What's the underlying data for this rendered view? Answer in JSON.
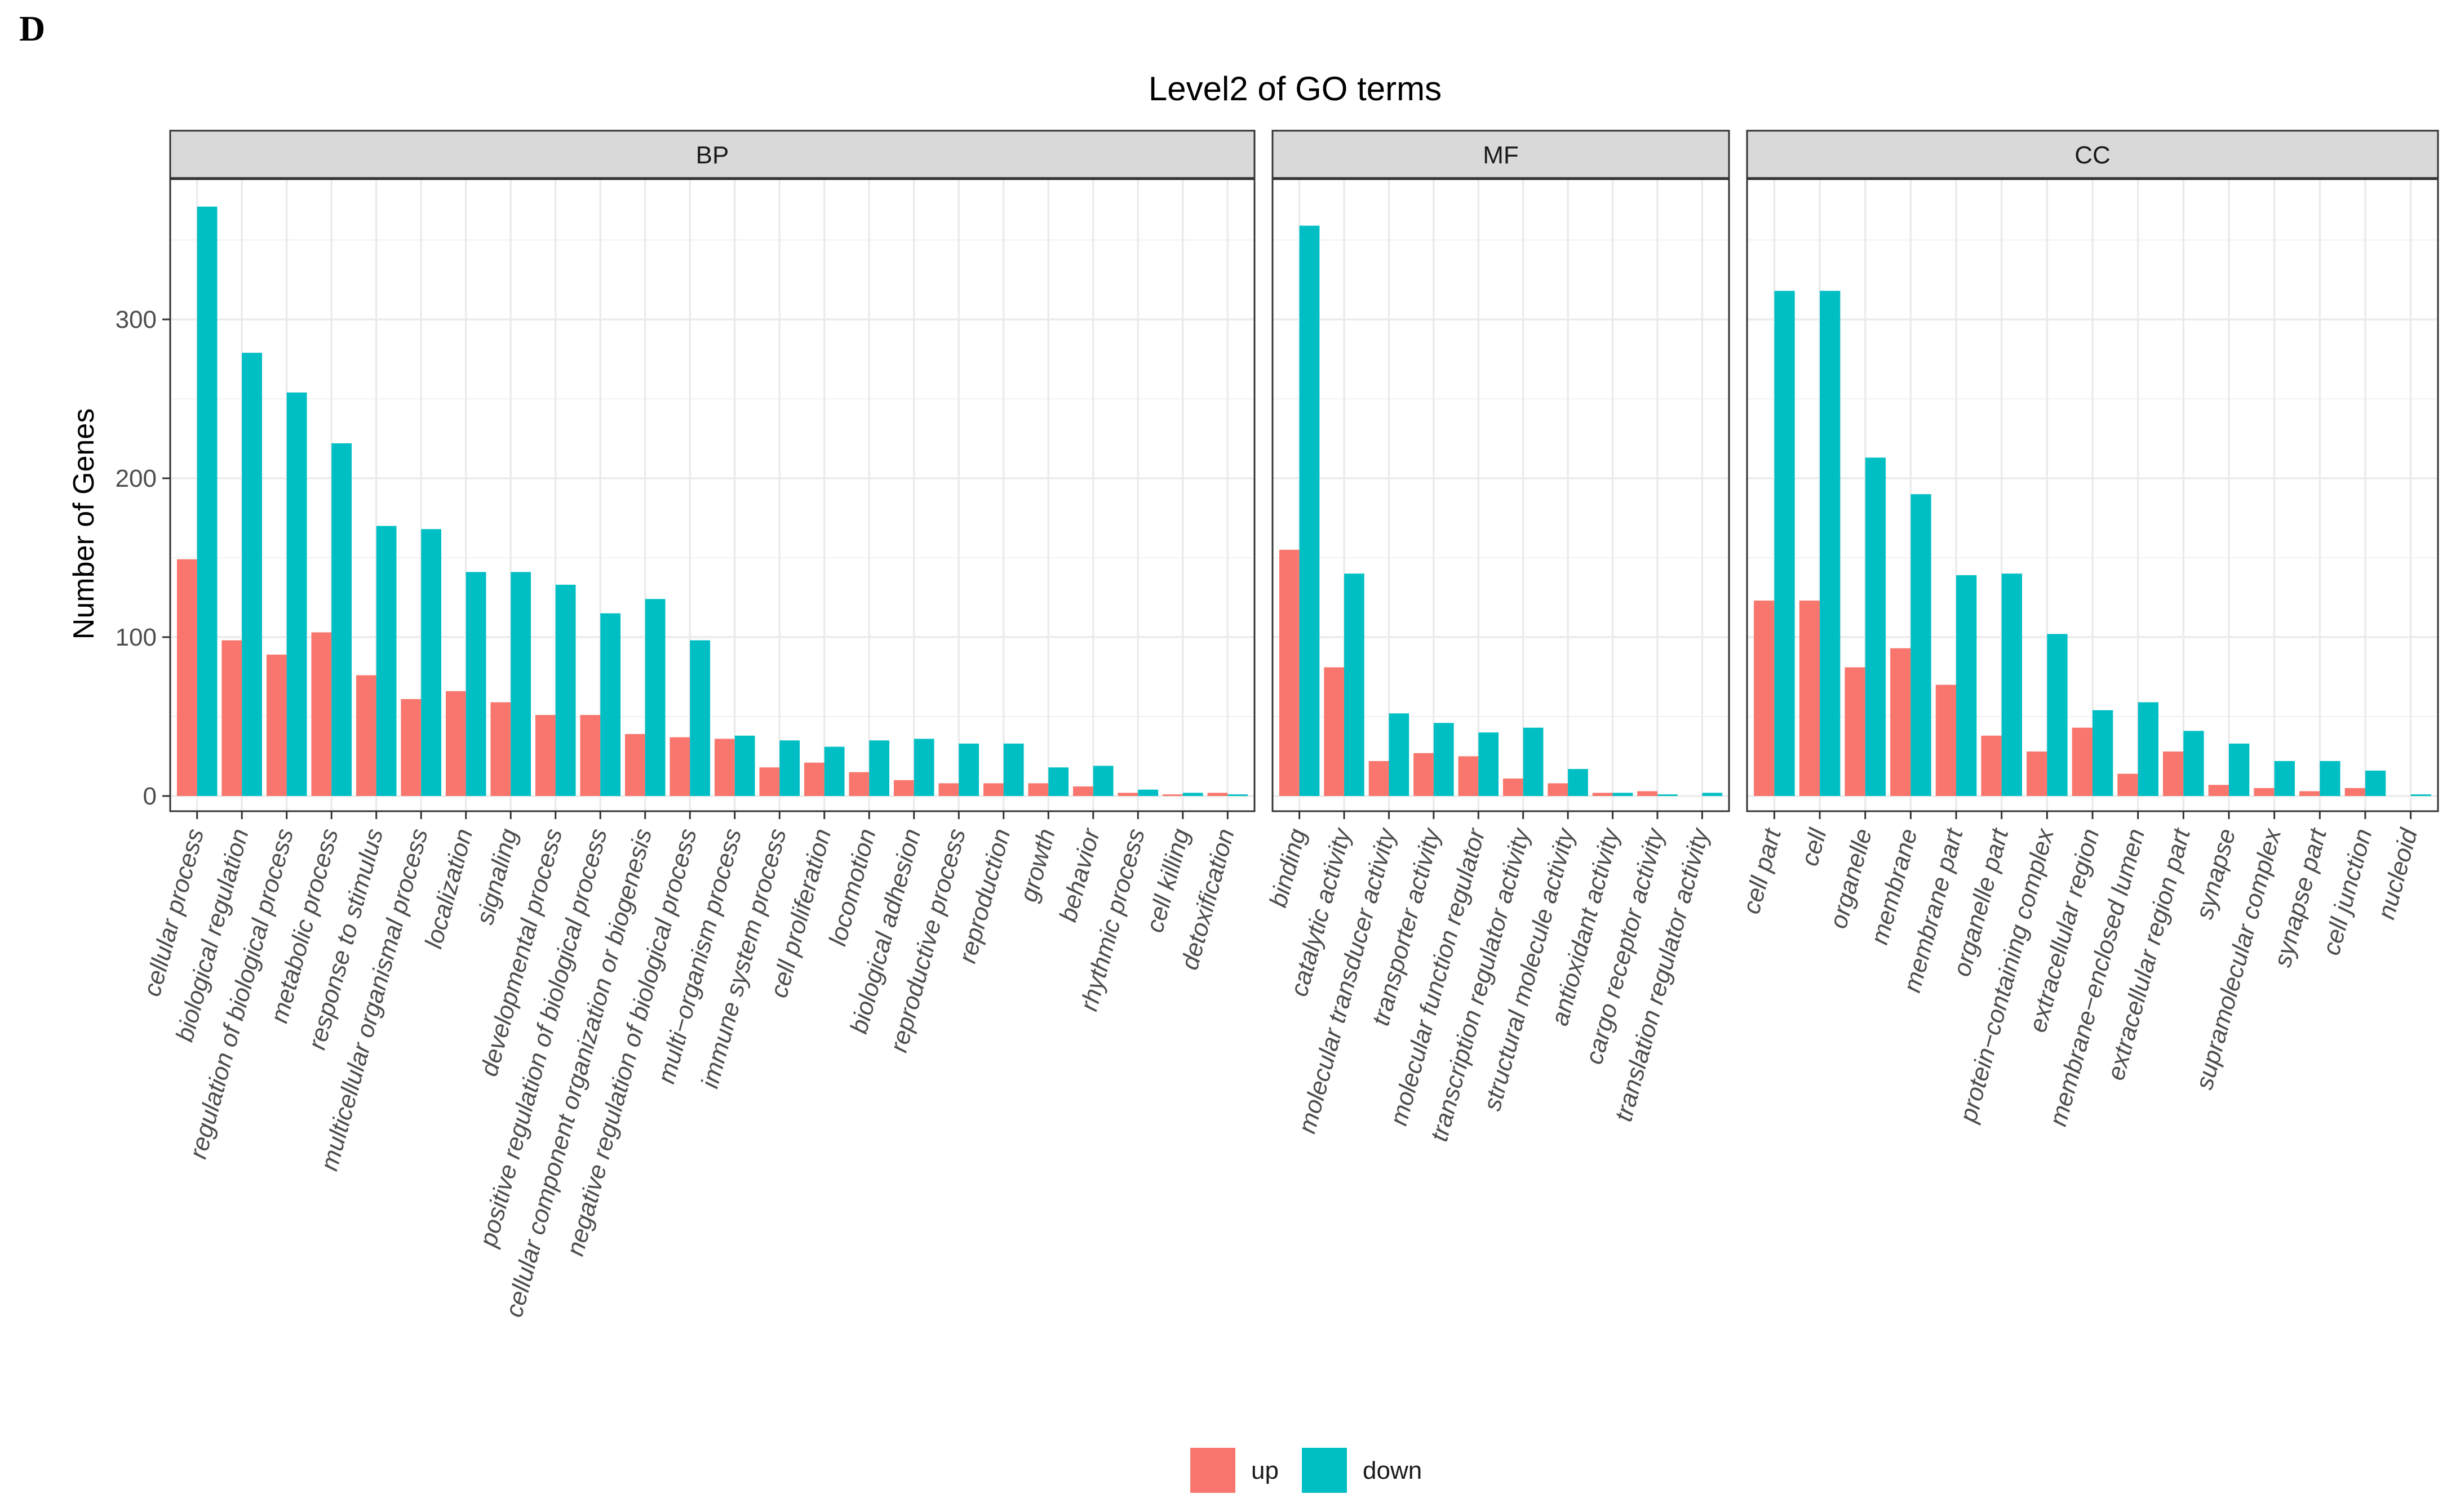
{
  "panel_label": "D",
  "chart_data": {
    "type": "bar",
    "title": "Level2 of GO terms",
    "xlabel": "",
    "ylabel": "Number of Genes",
    "ylim": [
      0,
      390
    ],
    "y_ticks": [
      0,
      100,
      200,
      300
    ],
    "grid": true,
    "legend_position": "bottom",
    "series": [
      {
        "name": "up",
        "color": "#F8766D"
      },
      {
        "name": "down",
        "color": "#00BFC4"
      }
    ],
    "facets": [
      {
        "name": "BP",
        "categories": [
          "cellular process",
          "biological regulation",
          "regulation of biological process",
          "metabolic process",
          "response to stimulus",
          "multicellular organismal process",
          "localization",
          "signaling",
          "developmental process",
          "positive regulation of biological process",
          "cellular component organization or biogenesis",
          "negative regulation of biological process",
          "multi−organism process",
          "immune system process",
          "cell proliferation",
          "locomotion",
          "biological adhesion",
          "reproductive process",
          "reproduction",
          "growth",
          "behavior",
          "rhythmic process",
          "cell killing",
          "detoxification"
        ],
        "up": [
          149,
          98,
          89,
          103,
          76,
          61,
          66,
          59,
          51,
          51,
          39,
          37,
          36,
          18,
          21,
          15,
          10,
          8,
          8,
          8,
          6,
          2,
          1,
          2
        ],
        "down": [
          371,
          279,
          254,
          222,
          170,
          168,
          141,
          141,
          133,
          115,
          124,
          98,
          38,
          35,
          31,
          35,
          36,
          33,
          33,
          18,
          19,
          4,
          2,
          1
        ]
      },
      {
        "name": "MF",
        "categories": [
          "binding",
          "catalytic activity",
          "molecular transducer activity",
          "transporter activity",
          "molecular function regulator",
          "transcription regulator activity",
          "structural molecule activity",
          "antioxidant activity",
          "cargo receptor activity",
          "translation regulator activity"
        ],
        "up": [
          155,
          81,
          22,
          27,
          25,
          11,
          8,
          2,
          3,
          0
        ],
        "down": [
          359,
          140,
          52,
          46,
          40,
          43,
          17,
          2,
          1,
          2
        ]
      },
      {
        "name": "CC",
        "categories": [
          "cell part",
          "cell",
          "organelle",
          "membrane",
          "membrane part",
          "organelle part",
          "protein−containing complex",
          "extracellular region",
          "membrane−enclosed lumen",
          "extracellular region part",
          "synapse",
          "supramolecular complex",
          "synapse part",
          "cell junction",
          "nucleoid"
        ],
        "up": [
          123,
          123,
          81,
          93,
          70,
          38,
          28,
          43,
          14,
          28,
          7,
          5,
          3,
          5,
          0
        ],
        "down": [
          318,
          318,
          213,
          190,
          139,
          140,
          102,
          54,
          59,
          41,
          33,
          22,
          22,
          16,
          1
        ]
      }
    ]
  }
}
